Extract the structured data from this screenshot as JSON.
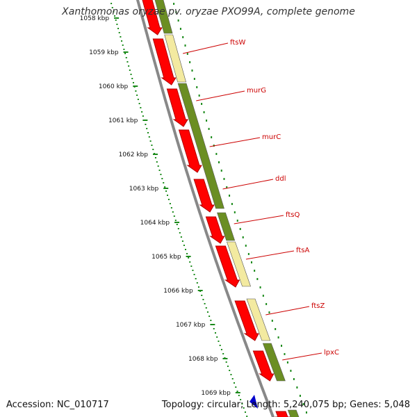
{
  "title": "Xanthomonas oryzae pv. oryzae PXO99A, complete genome",
  "accession": "Accession: NC_010717",
  "topology_info": "Topology: circular; Length: 5,240,075 bp; Genes: 5,048",
  "colors": {
    "backbone": "#888888",
    "cds_red": "#ff0000",
    "cds_red_dark": "#b00000",
    "ring_green": "#6b8e23",
    "ring_yellow": "#f3eaa0",
    "tick_green": "#1a8a1a",
    "label_red": "#cc0000",
    "blue_feature": "#0000cc"
  },
  "scale": {
    "unit": "kbp",
    "ticks": [
      {
        "kbp": 1058,
        "label": "1058 kbp"
      },
      {
        "kbp": 1059,
        "label": "1059 kbp"
      },
      {
        "kbp": 1060,
        "label": "1060 kbp"
      },
      {
        "kbp": 1061,
        "label": "1061 kbp"
      },
      {
        "kbp": 1062,
        "label": "1062 kbp"
      },
      {
        "kbp": 1063,
        "label": "1063 kbp"
      },
      {
        "kbp": 1064,
        "label": "1064 kbp"
      },
      {
        "kbp": 1065,
        "label": "1065 kbp"
      },
      {
        "kbp": 1066,
        "label": "1066 kbp"
      },
      {
        "kbp": 1067,
        "label": "1067 kbp"
      },
      {
        "kbp": 1068,
        "label": "1068 kbp"
      },
      {
        "kbp": 1069,
        "label": "1069 kbp"
      }
    ]
  },
  "genes": [
    {
      "name": "ftsW",
      "start_kbp": 1058.2,
      "end_kbp": 1059.1
    },
    {
      "name": "murG",
      "start_kbp": 1059.1,
      "end_kbp": 1060.1
    },
    {
      "name": "murC",
      "start_kbp": 1060.1,
      "end_kbp": 1061.6
    },
    {
      "name": "ddl",
      "start_kbp": 1061.6,
      "end_kbp": 1062.8
    },
    {
      "name": "ftsQ",
      "start_kbp": 1062.8,
      "end_kbp": 1063.6
    },
    {
      "name": "ftsA",
      "start_kbp": 1063.6,
      "end_kbp": 1064.9
    },
    {
      "name": "ftsZ",
      "start_kbp": 1065.3,
      "end_kbp": 1066.5
    },
    {
      "name": "lpxC",
      "start_kbp": 1066.8,
      "end_kbp": 1067.8
    }
  ]
}
